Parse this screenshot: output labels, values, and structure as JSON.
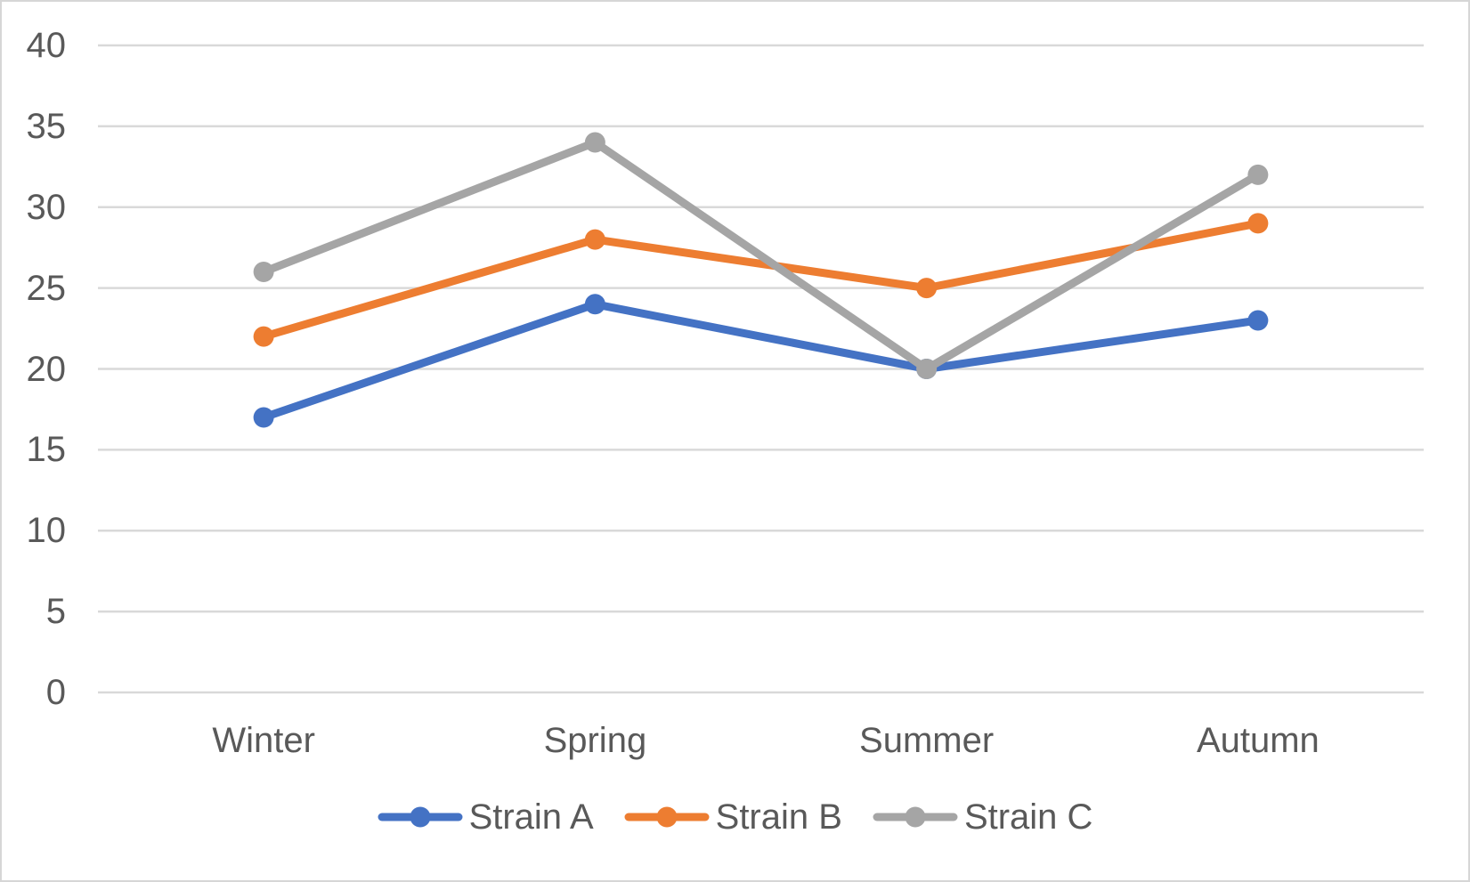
{
  "chart_data": {
    "type": "line",
    "categories": [
      "Winter",
      "Spring",
      "Summer",
      "Autumn"
    ],
    "series": [
      {
        "name": "Strain A",
        "values": [
          17,
          24,
          20,
          23
        ],
        "color": "#4472C4"
      },
      {
        "name": "Strain B",
        "values": [
          22,
          28,
          25,
          29
        ],
        "color": "#ED7D31"
      },
      {
        "name": "Strain C",
        "values": [
          26,
          34,
          20,
          32
        ],
        "color": "#A5A5A5"
      }
    ],
    "title": "",
    "xlabel": "",
    "ylabel": "",
    "ylim": [
      0,
      40
    ],
    "ytick_step": 5,
    "yticks": [
      "0",
      "5",
      "10",
      "15",
      "20",
      "25",
      "30",
      "35",
      "40"
    ],
    "grid": true,
    "legend_position": "bottom"
  },
  "style": {
    "gridline_color": "#D9D9D9",
    "axis_text_color": "#595959",
    "background_color": "#FFFFFF",
    "border_color": "#D6D6D6"
  }
}
